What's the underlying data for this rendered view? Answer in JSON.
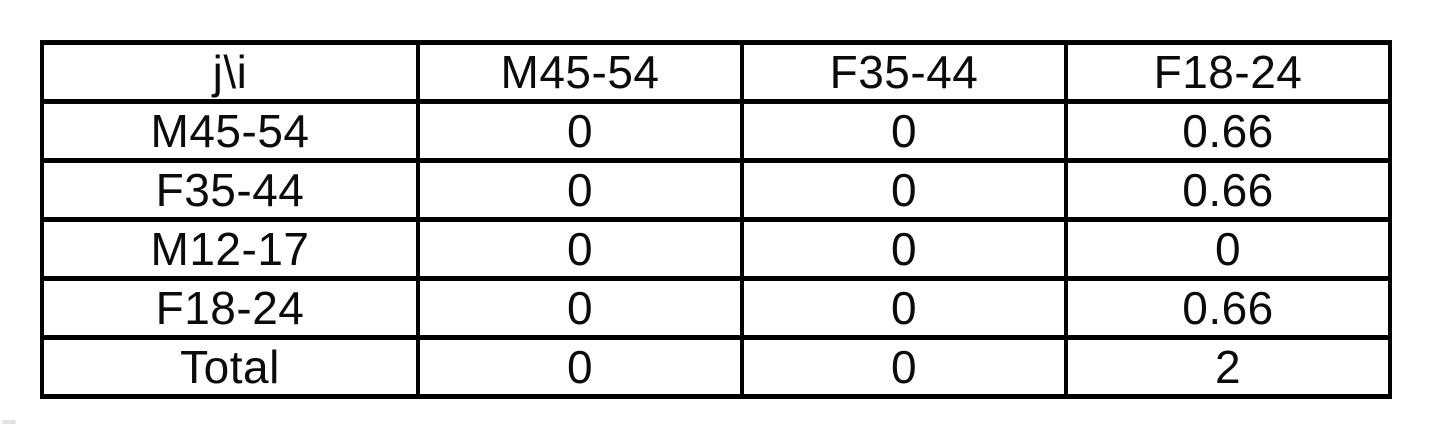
{
  "colors": {
    "background": "#ffffff",
    "border": "#000000",
    "text": "#0b0b0b"
  },
  "table": {
    "header": [
      "j\\i",
      "M45-54",
      "F35-44",
      "F18-24"
    ],
    "rows": [
      [
        "M45-54",
        "0",
        "0",
        "0.66"
      ],
      [
        "F35-44",
        "0",
        "0",
        "0.66"
      ],
      [
        "M12-17",
        "0",
        "0",
        "0"
      ],
      [
        "F18-24",
        "0",
        "0",
        "0.66"
      ],
      [
        "Total",
        "0",
        "0",
        "2"
      ]
    ]
  }
}
